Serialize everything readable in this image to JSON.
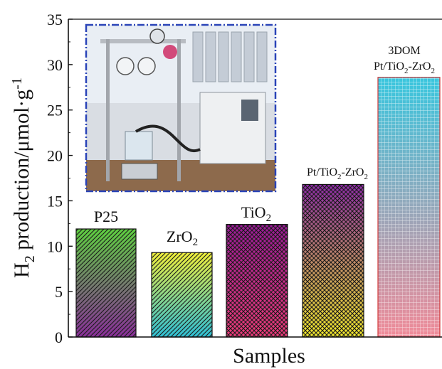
{
  "chart_data": {
    "type": "bar",
    "xlabel": "Samples",
    "ylabel": {
      "main": "H",
      "sub": "2",
      "rest": " production/μmol·g",
      "sup": "-1"
    },
    "ylim": [
      0,
      35
    ],
    "yticks": [
      0,
      5,
      10,
      15,
      20,
      25,
      30,
      35
    ],
    "categories": [
      {
        "parts": [
          {
            "t": "P25"
          }
        ]
      },
      {
        "parts": [
          {
            "t": "ZrO"
          },
          {
            "t": "2",
            "sub": true
          }
        ]
      },
      {
        "parts": [
          {
            "t": "TiO"
          },
          {
            "t": "2",
            "sub": true
          }
        ]
      },
      {
        "parts": [
          {
            "t": "Pt/TiO"
          },
          {
            "t": "2",
            "sub": true
          },
          {
            "t": "-ZrO"
          },
          {
            "t": "2",
            "sub": true
          }
        ]
      },
      {
        "line1": "3DOM",
        "parts": [
          {
            "t": "Pt/TiO"
          },
          {
            "t": "2",
            "sub": true
          },
          {
            "t": "-ZrO"
          },
          {
            "t": "2",
            "sub": true
          }
        ]
      }
    ],
    "values": [
      11.9,
      9.3,
      12.4,
      16.8,
      28.6
    ],
    "bar_colors": [
      [
        "#5ed040",
        "#8a2e9a"
      ],
      [
        "#f0ef3a",
        "#2ec0d6"
      ],
      [
        "#9a1a98",
        "#ef3b7a"
      ],
      [
        "#8e2aa8",
        "#f2ea2a"
      ],
      [
        "#38c6de",
        "#f08a98"
      ]
    ],
    "inset": "photo of photocatalytic H2 production apparatus"
  }
}
